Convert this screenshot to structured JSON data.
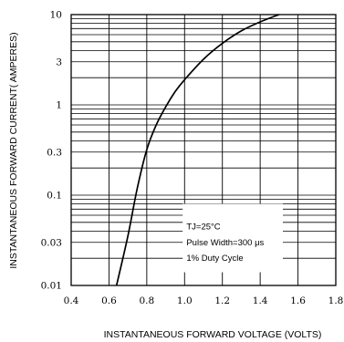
{
  "chart_data": {
    "type": "line",
    "title": "",
    "xlabel": "INSTANTANEOUS FORWARD VOLTAGE (VOLTS)",
    "ylabel": "INSTANTANEOUS FORWARD CURRENT( AMPERES)",
    "xlim": [
      0.4,
      1.8
    ],
    "ylim": [
      0.01,
      10
    ],
    "yscale": "log",
    "grid": true,
    "x_tick_labels": [
      "0.4",
      "0.6",
      "0.8",
      "1.0",
      "1.2",
      "1.4",
      "1.6",
      "1.8"
    ],
    "y_ticks": [
      0.01,
      0.03,
      0.1,
      0.3,
      1,
      3,
      10
    ],
    "y_tick_labels": [
      "0.01",
      "0.03",
      "0.1",
      "0.3",
      "1",
      "3",
      "10"
    ],
    "series": [
      {
        "x": [
          0.64,
          0.7,
          0.75,
          0.8,
          0.85,
          0.9,
          0.95,
          1.0,
          1.1,
          1.2,
          1.3,
          1.4,
          1.5
        ],
        "y": [
          0.01,
          0.035,
          0.12,
          0.32,
          0.6,
          0.95,
          1.4,
          1.9,
          3.2,
          4.8,
          6.6,
          8.3,
          10.0
        ]
      }
    ],
    "annotation": [
      "TJ=25°C",
      "Pulse Width=300 μs",
      "1% Duty Cycle"
    ]
  }
}
